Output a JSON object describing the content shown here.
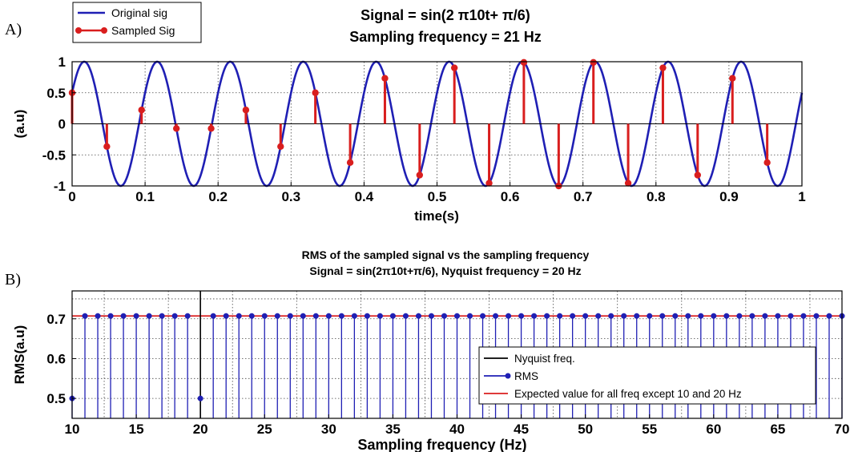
{
  "panels": {
    "a": {
      "letter": "A)"
    },
    "b": {
      "letter": "B)"
    }
  },
  "colors": {
    "signal": "#1f1fb4",
    "samples": "#d91e1e",
    "nyquist": "#000000",
    "expected": "#d91e1e",
    "rms": "#1f1fb4",
    "grid": "#444444"
  },
  "chart_data": [
    {
      "type": "line",
      "title": "Signal = sin(2 π10t+ π/6)",
      "subtitle": "Sampling frequency = 21 Hz",
      "xlabel": "time(s)",
      "ylabel": "(a.u)",
      "xlim": [
        0,
        1
      ],
      "ylim": [
        -1,
        1
      ],
      "xticks": [
        0,
        0.1,
        0.2,
        0.3,
        0.4,
        0.5,
        0.6,
        0.7,
        0.8,
        0.9,
        1
      ],
      "xtick_labels": [
        "0",
        "0.1",
        "0.2",
        "0.3",
        "0.4",
        "0.5",
        "0.6",
        "0.7",
        "0.8",
        "0.9",
        "1"
      ],
      "yticks": [
        -1,
        -0.5,
        0,
        0.5,
        1
      ],
      "ytick_labels": [
        "-1",
        "-0.5",
        "0",
        "0.5",
        "1"
      ],
      "grid": "dotted",
      "legend_position": "top-left",
      "series": [
        {
          "name": "Original sig",
          "kind": "line",
          "frequency_hz": 10,
          "phase_rad": 0.5235987756,
          "amplitude": 1
        },
        {
          "name": "Sampled Sig",
          "kind": "stem",
          "sampling_frequency_hz": 21,
          "x": [
            0,
            0.0476,
            0.0952,
            0.1429,
            0.1905,
            0.2381,
            0.2857,
            0.3333,
            0.381,
            0.4286,
            0.4762,
            0.5238,
            0.5714,
            0.619,
            0.6667,
            0.7143,
            0.7619,
            0.8095,
            0.8571,
            0.9048,
            0.9524
          ],
          "y": [
            0.5,
            -0.3653,
            0.2225,
            -0.0747,
            -0.0747,
            0.2225,
            -0.3653,
            0.5,
            -0.6235,
            0.733,
            -0.8262,
            0.901,
            -0.9556,
            0.9888,
            -1.0,
            0.9888,
            -0.9556,
            0.901,
            -0.8262,
            0.733,
            -0.6235
          ]
        }
      ]
    },
    {
      "type": "line",
      "title": "RMS of the sampled signal vs the sampling frequency",
      "subtitle": "Signal = sin(2π10t+π/6), Nyquist frequency = 20 Hz",
      "xlabel": "Sampling frequency (Hz)",
      "ylabel": "RMS(a.u)",
      "xlim": [
        10,
        70
      ],
      "ylim": [
        0.45,
        0.77
      ],
      "xticks": [
        10,
        15,
        20,
        25,
        30,
        35,
        40,
        45,
        50,
        55,
        60,
        65,
        70
      ],
      "xtick_labels": [
        "10",
        "15",
        "20",
        "25",
        "30",
        "35",
        "40",
        "45",
        "50",
        "55",
        "60",
        "65",
        "70"
      ],
      "yticks": [
        0.5,
        0.6,
        0.7
      ],
      "ytick_labels": [
        "0.5",
        "0.6",
        "0.7"
      ],
      "grid": "dotted",
      "legend_position": "bottom-right",
      "series": [
        {
          "name": "Nyquist freq.",
          "kind": "vline",
          "x": 20
        },
        {
          "name": "RMS",
          "kind": "stem",
          "x": [
            10,
            11,
            12,
            13,
            14,
            15,
            16,
            17,
            18,
            19,
            20,
            21,
            22,
            23,
            24,
            25,
            26,
            27,
            28,
            29,
            30,
            31,
            32,
            33,
            34,
            35,
            36,
            37,
            38,
            39,
            40,
            41,
            42,
            43,
            44,
            45,
            46,
            47,
            48,
            49,
            50,
            51,
            52,
            53,
            54,
            55,
            56,
            57,
            58,
            59,
            60,
            61,
            62,
            63,
            64,
            65,
            66,
            67,
            68,
            69,
            70
          ],
          "y": [
            0.5,
            0.7071,
            0.7071,
            0.7071,
            0.7071,
            0.7071,
            0.7071,
            0.7071,
            0.7071,
            0.7071,
            0.5,
            0.7071,
            0.7071,
            0.7071,
            0.7071,
            0.7071,
            0.7071,
            0.7071,
            0.7071,
            0.7071,
            0.7071,
            0.7071,
            0.7071,
            0.7071,
            0.7071,
            0.7071,
            0.7071,
            0.7071,
            0.7071,
            0.7071,
            0.7071,
            0.7071,
            0.7071,
            0.7071,
            0.7071,
            0.7071,
            0.7071,
            0.7071,
            0.7071,
            0.7071,
            0.7071,
            0.7071,
            0.7071,
            0.7071,
            0.7071,
            0.7071,
            0.7071,
            0.7071,
            0.7071,
            0.7071,
            0.7071,
            0.7071,
            0.7071,
            0.7071,
            0.7071,
            0.7071,
            0.7071,
            0.7071,
            0.7071,
            0.7071,
            0.7071
          ]
        },
        {
          "name": "Expected value for all freq except 10 and 20 Hz",
          "kind": "hline",
          "y": 0.7071
        }
      ]
    }
  ]
}
